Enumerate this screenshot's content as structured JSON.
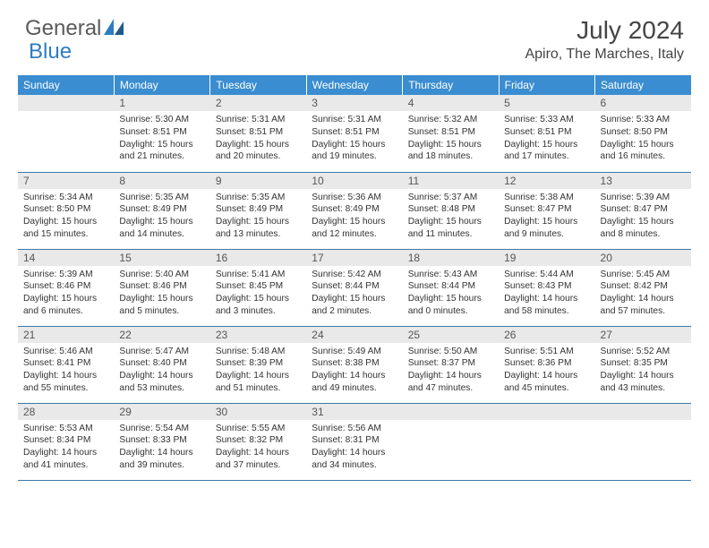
{
  "logo": {
    "general": "General",
    "blue": "Blue"
  },
  "title": "July 2024",
  "location": "Apiro, The Marches, Italy",
  "colors": {
    "header_bg": "#3a8dd0",
    "header_text": "#ffffff",
    "daynum_bg": "#e9e9e9",
    "row_border": "#3a78a8",
    "logo_blue": "#2d7dc0",
    "logo_gray": "#5a5a5a"
  },
  "weekdays": [
    "Sunday",
    "Monday",
    "Tuesday",
    "Wednesday",
    "Thursday",
    "Friday",
    "Saturday"
  ],
  "weeks": [
    [
      {
        "num": "",
        "sunrise": "",
        "sunset": "",
        "daylight": ""
      },
      {
        "num": "1",
        "sunrise": "Sunrise: 5:30 AM",
        "sunset": "Sunset: 8:51 PM",
        "daylight": "Daylight: 15 hours and 21 minutes."
      },
      {
        "num": "2",
        "sunrise": "Sunrise: 5:31 AM",
        "sunset": "Sunset: 8:51 PM",
        "daylight": "Daylight: 15 hours and 20 minutes."
      },
      {
        "num": "3",
        "sunrise": "Sunrise: 5:31 AM",
        "sunset": "Sunset: 8:51 PM",
        "daylight": "Daylight: 15 hours and 19 minutes."
      },
      {
        "num": "4",
        "sunrise": "Sunrise: 5:32 AM",
        "sunset": "Sunset: 8:51 PM",
        "daylight": "Daylight: 15 hours and 18 minutes."
      },
      {
        "num": "5",
        "sunrise": "Sunrise: 5:33 AM",
        "sunset": "Sunset: 8:51 PM",
        "daylight": "Daylight: 15 hours and 17 minutes."
      },
      {
        "num": "6",
        "sunrise": "Sunrise: 5:33 AM",
        "sunset": "Sunset: 8:50 PM",
        "daylight": "Daylight: 15 hours and 16 minutes."
      }
    ],
    [
      {
        "num": "7",
        "sunrise": "Sunrise: 5:34 AM",
        "sunset": "Sunset: 8:50 PM",
        "daylight": "Daylight: 15 hours and 15 minutes."
      },
      {
        "num": "8",
        "sunrise": "Sunrise: 5:35 AM",
        "sunset": "Sunset: 8:49 PM",
        "daylight": "Daylight: 15 hours and 14 minutes."
      },
      {
        "num": "9",
        "sunrise": "Sunrise: 5:35 AM",
        "sunset": "Sunset: 8:49 PM",
        "daylight": "Daylight: 15 hours and 13 minutes."
      },
      {
        "num": "10",
        "sunrise": "Sunrise: 5:36 AM",
        "sunset": "Sunset: 8:49 PM",
        "daylight": "Daylight: 15 hours and 12 minutes."
      },
      {
        "num": "11",
        "sunrise": "Sunrise: 5:37 AM",
        "sunset": "Sunset: 8:48 PM",
        "daylight": "Daylight: 15 hours and 11 minutes."
      },
      {
        "num": "12",
        "sunrise": "Sunrise: 5:38 AM",
        "sunset": "Sunset: 8:47 PM",
        "daylight": "Daylight: 15 hours and 9 minutes."
      },
      {
        "num": "13",
        "sunrise": "Sunrise: 5:39 AM",
        "sunset": "Sunset: 8:47 PM",
        "daylight": "Daylight: 15 hours and 8 minutes."
      }
    ],
    [
      {
        "num": "14",
        "sunrise": "Sunrise: 5:39 AM",
        "sunset": "Sunset: 8:46 PM",
        "daylight": "Daylight: 15 hours and 6 minutes."
      },
      {
        "num": "15",
        "sunrise": "Sunrise: 5:40 AM",
        "sunset": "Sunset: 8:46 PM",
        "daylight": "Daylight: 15 hours and 5 minutes."
      },
      {
        "num": "16",
        "sunrise": "Sunrise: 5:41 AM",
        "sunset": "Sunset: 8:45 PM",
        "daylight": "Daylight: 15 hours and 3 minutes."
      },
      {
        "num": "17",
        "sunrise": "Sunrise: 5:42 AM",
        "sunset": "Sunset: 8:44 PM",
        "daylight": "Daylight: 15 hours and 2 minutes."
      },
      {
        "num": "18",
        "sunrise": "Sunrise: 5:43 AM",
        "sunset": "Sunset: 8:44 PM",
        "daylight": "Daylight: 15 hours and 0 minutes."
      },
      {
        "num": "19",
        "sunrise": "Sunrise: 5:44 AM",
        "sunset": "Sunset: 8:43 PM",
        "daylight": "Daylight: 14 hours and 58 minutes."
      },
      {
        "num": "20",
        "sunrise": "Sunrise: 5:45 AM",
        "sunset": "Sunset: 8:42 PM",
        "daylight": "Daylight: 14 hours and 57 minutes."
      }
    ],
    [
      {
        "num": "21",
        "sunrise": "Sunrise: 5:46 AM",
        "sunset": "Sunset: 8:41 PM",
        "daylight": "Daylight: 14 hours and 55 minutes."
      },
      {
        "num": "22",
        "sunrise": "Sunrise: 5:47 AM",
        "sunset": "Sunset: 8:40 PM",
        "daylight": "Daylight: 14 hours and 53 minutes."
      },
      {
        "num": "23",
        "sunrise": "Sunrise: 5:48 AM",
        "sunset": "Sunset: 8:39 PM",
        "daylight": "Daylight: 14 hours and 51 minutes."
      },
      {
        "num": "24",
        "sunrise": "Sunrise: 5:49 AM",
        "sunset": "Sunset: 8:38 PM",
        "daylight": "Daylight: 14 hours and 49 minutes."
      },
      {
        "num": "25",
        "sunrise": "Sunrise: 5:50 AM",
        "sunset": "Sunset: 8:37 PM",
        "daylight": "Daylight: 14 hours and 47 minutes."
      },
      {
        "num": "26",
        "sunrise": "Sunrise: 5:51 AM",
        "sunset": "Sunset: 8:36 PM",
        "daylight": "Daylight: 14 hours and 45 minutes."
      },
      {
        "num": "27",
        "sunrise": "Sunrise: 5:52 AM",
        "sunset": "Sunset: 8:35 PM",
        "daylight": "Daylight: 14 hours and 43 minutes."
      }
    ],
    [
      {
        "num": "28",
        "sunrise": "Sunrise: 5:53 AM",
        "sunset": "Sunset: 8:34 PM",
        "daylight": "Daylight: 14 hours and 41 minutes."
      },
      {
        "num": "29",
        "sunrise": "Sunrise: 5:54 AM",
        "sunset": "Sunset: 8:33 PM",
        "daylight": "Daylight: 14 hours and 39 minutes."
      },
      {
        "num": "30",
        "sunrise": "Sunrise: 5:55 AM",
        "sunset": "Sunset: 8:32 PM",
        "daylight": "Daylight: 14 hours and 37 minutes."
      },
      {
        "num": "31",
        "sunrise": "Sunrise: 5:56 AM",
        "sunset": "Sunset: 8:31 PM",
        "daylight": "Daylight: 14 hours and 34 minutes."
      },
      {
        "num": "",
        "sunrise": "",
        "sunset": "",
        "daylight": ""
      },
      {
        "num": "",
        "sunrise": "",
        "sunset": "",
        "daylight": ""
      },
      {
        "num": "",
        "sunrise": "",
        "sunset": "",
        "daylight": ""
      }
    ]
  ]
}
